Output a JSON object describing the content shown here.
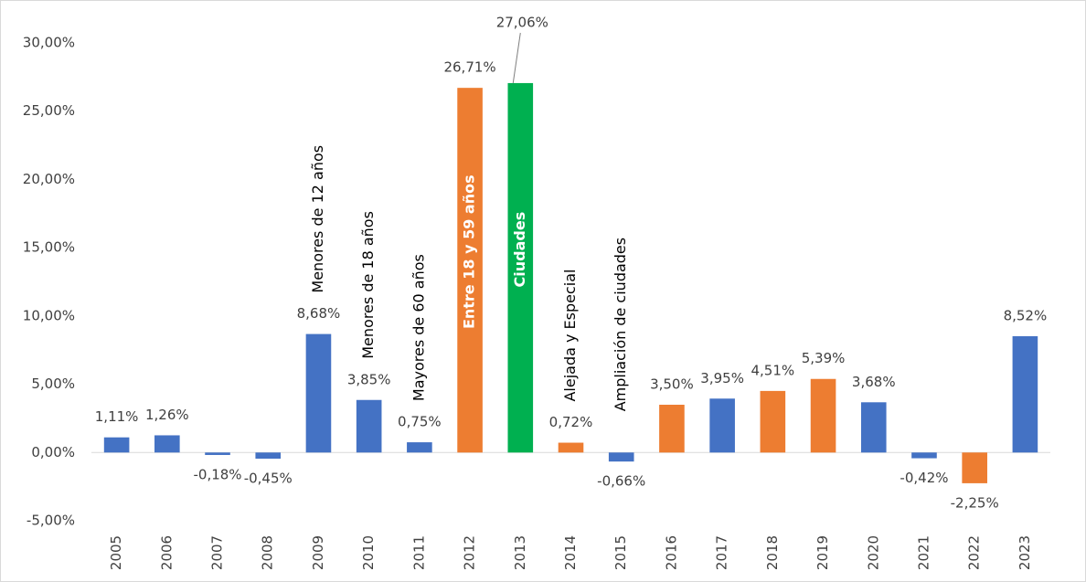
{
  "chart_data": {
    "type": "bar",
    "categories": [
      "2005",
      "2006",
      "2007",
      "2008",
      "2009",
      "2010",
      "2011",
      "2012",
      "2013",
      "2014",
      "2015",
      "2016",
      "2017",
      "2018",
      "2019",
      "2020",
      "2021",
      "2022",
      "2023"
    ],
    "values": [
      1.11,
      1.26,
      -0.18,
      -0.45,
      8.68,
      3.85,
      0.75,
      26.71,
      27.06,
      0.72,
      -0.66,
      3.5,
      3.95,
      4.51,
      5.39,
      3.68,
      -0.42,
      -2.25,
      8.52
    ],
    "value_labels": [
      "1,11%",
      "1,26%",
      "-0,18%",
      "-0,45%",
      "8,68%",
      "3,85%",
      "0,75%",
      "26,71%",
      "27,06%",
      "0,72%",
      "-0,66%",
      "3,50%",
      "3,95%",
      "4,51%",
      "5,39%",
      "3,68%",
      "-0,42%",
      "-2,25%",
      "8,52%"
    ],
    "colors": [
      "#4472c4",
      "#4472c4",
      "#4472c4",
      "#4472c4",
      "#4472c4",
      "#4472c4",
      "#4472c4",
      "#ed7d31",
      "#00b050",
      "#ed7d31",
      "#4472c4",
      "#ed7d31",
      "#4472c4",
      "#ed7d31",
      "#ed7d31",
      "#4472c4",
      "#4472c4",
      "#ed7d31",
      "#4472c4"
    ],
    "bar_annotations": [
      null,
      null,
      null,
      null,
      "Menores de 12 años",
      "Menores de 18 años",
      "Mayores de 60 años",
      "Entre 18 y 59 años",
      "Ciudades",
      "Alejada y Especial",
      "Ampliación de ciudades",
      null,
      null,
      null,
      null,
      null,
      null,
      null,
      null
    ],
    "ylim": [
      -5,
      30
    ],
    "yticks": [
      {
        "value": -5,
        "label": "-5,00%"
      },
      {
        "value": 0,
        "label": "0,00%"
      },
      {
        "value": 5,
        "label": "5,00%"
      },
      {
        "value": 10,
        "label": "10,00%"
      },
      {
        "value": 15,
        "label": "15,00%"
      },
      {
        "value": 20,
        "label": "20,00%"
      },
      {
        "value": 25,
        "label": "25,00%"
      },
      {
        "value": 30,
        "label": "30,00%"
      }
    ],
    "grid": false
  }
}
